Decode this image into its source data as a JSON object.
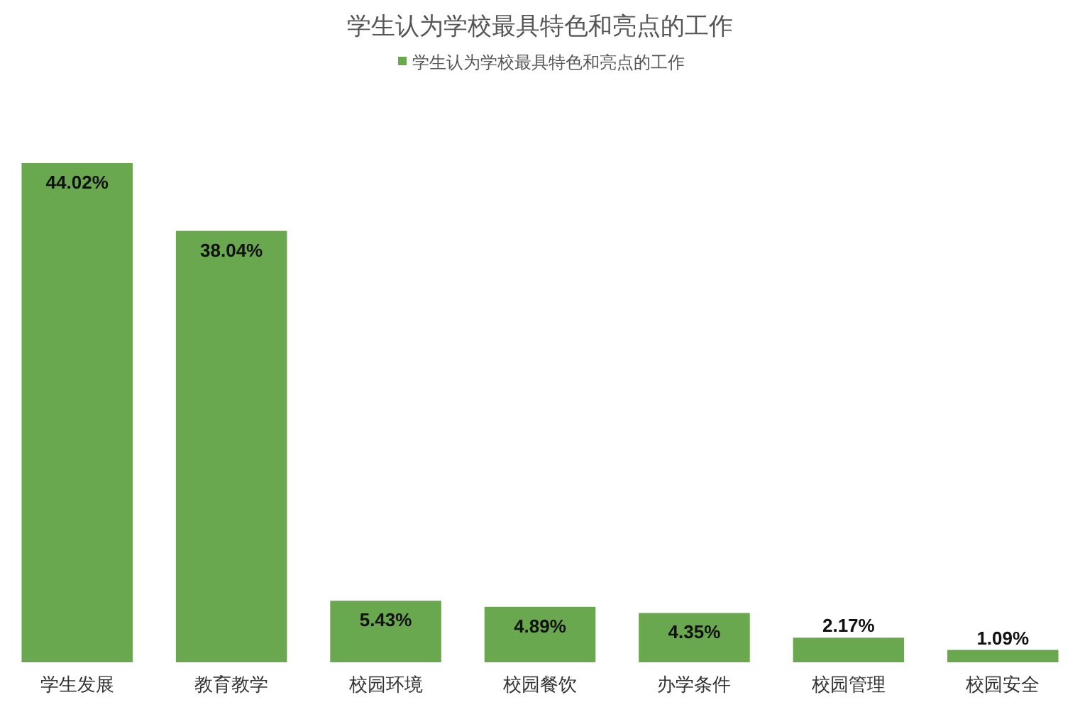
{
  "chart_data": {
    "type": "bar",
    "title": "学生认为学校最具特色和亮点的工作",
    "categories": [
      "学生发展",
      "教育教学",
      "校园环境",
      "校园餐饮",
      "办学条件",
      "校园管理",
      "校园安全"
    ],
    "series": [
      {
        "name": "学生认为学校最具特色和亮点的工作",
        "color": "#6aa84f",
        "values": [
          44.02,
          38.04,
          5.43,
          4.89,
          4.35,
          2.17,
          1.09
        ],
        "value_labels": [
          "44.02%",
          "38.04%",
          "5.43%",
          "4.89%",
          "4.35%",
          "2.17%",
          "1.09%"
        ]
      }
    ],
    "legend": "top",
    "grid": false
  }
}
